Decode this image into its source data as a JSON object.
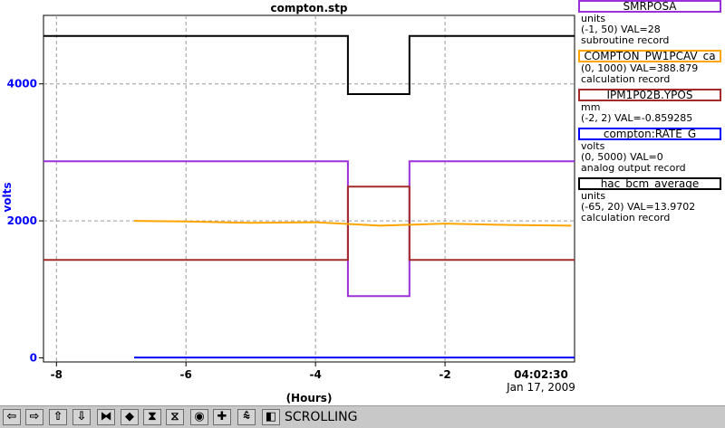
{
  "chart_data": {
    "type": "line",
    "title": "compton.stp",
    "xlabel": "(Hours)",
    "ylabel": "volts",
    "xlim": [
      -8.2,
      0
    ],
    "ylim": [
      -60,
      5000
    ],
    "x_ticks": [
      -8,
      -6,
      -4,
      -2
    ],
    "x_tick_labels": [
      "-8",
      "-6",
      "-4",
      "-2"
    ],
    "y_ticks": [
      0,
      2000,
      4000
    ],
    "y_tick_labels": [
      "0",
      "2000",
      "4000"
    ],
    "grid": true,
    "end_time": "04:02:30",
    "end_date": "Jan 17, 2009",
    "series": [
      {
        "name": "hac_bcm_average",
        "color": "#000000",
        "x": [
          -8.2,
          -3.5,
          -3.5,
          -2.55,
          -2.55,
          0
        ],
        "values": [
          4700,
          4700,
          3850,
          3850,
          4700,
          4700
        ]
      },
      {
        "name": "SMRPOSA",
        "color": "#9b30d9",
        "x": [
          -8.2,
          -3.5,
          -3.5,
          -2.55,
          -2.55,
          0
        ],
        "values": [
          2870,
          2870,
          900,
          900,
          2870,
          2870
        ]
      },
      {
        "name": "IPM1P02B.YPOS",
        "color": "#a52a2a",
        "x": [
          -8.2,
          -3.5,
          -3.5,
          -2.55,
          -2.55,
          0
        ],
        "values": [
          1430,
          1430,
          2500,
          2500,
          1430,
          1430
        ]
      },
      {
        "name": "COMPTON_PW1PCAV_ca",
        "color": "#ffa500",
        "x": [
          -6.8,
          -6,
          -5,
          -4,
          -3,
          -2,
          -1,
          -0.05
        ],
        "values": [
          2000,
          1990,
          1970,
          1980,
          1930,
          1960,
          1940,
          1930
        ]
      },
      {
        "name": "compton:RATE_G",
        "color": "#0000ff",
        "x": [
          -6.8,
          0
        ],
        "values": [
          5,
          5
        ]
      }
    ]
  },
  "legend": [
    {
      "name": "SMRPOSA",
      "color": "#9b30d9",
      "line1": "units",
      "line2": "(-1, 50) VAL=28",
      "line3": "subroutine record"
    },
    {
      "name": "COMPTON_PW1PCAV_ca",
      "color": "#ffa500",
      "line1": "",
      "line2": "(0, 1000) VAL=388.879",
      "line3": "calculation record"
    },
    {
      "name": "IPM1P02B.YPOS",
      "color": "#a52a2a",
      "line1": "mm",
      "line2": "(-2, 2) VAL=-0.859285",
      "line3": ""
    },
    {
      "name": "compton:RATE_G",
      "color": "#0000ff",
      "line1": "volts",
      "line2": "(0, 5000) VAL=0",
      "line3": "analog output record"
    },
    {
      "name": "hac_bcm_average",
      "color": "#000000",
      "line1": "units",
      "line2": "(-65, 20) VAL=13.9702",
      "line3": "calculation record"
    }
  ],
  "toolbar": {
    "mode": "SCROLLING",
    "buttons": [
      {
        "name": "scroll-left-button",
        "glyph": "⇦"
      },
      {
        "name": "scroll-right-button",
        "glyph": "⇨"
      },
      {
        "name": "scroll-up-button",
        "glyph": "⇧"
      },
      {
        "name": "scroll-down-button",
        "glyph": "⇩"
      },
      {
        "name": "zoom-in-horizontal-button",
        "glyph": "⧓"
      },
      {
        "name": "zoom-out-horizontal-button",
        "glyph": "◆"
      },
      {
        "name": "zoom-in-vertical-button",
        "glyph": "⧗"
      },
      {
        "name": "zoom-out-vertical-button",
        "glyph": "⧖"
      },
      {
        "name": "autoscale-button",
        "glyph": "◉"
      },
      {
        "name": "add-button",
        "glyph": "✚"
      },
      {
        "name": "stagger-button",
        "glyph": "⩯"
      },
      {
        "name": "mode-toggle-button",
        "glyph": "◧"
      }
    ]
  }
}
